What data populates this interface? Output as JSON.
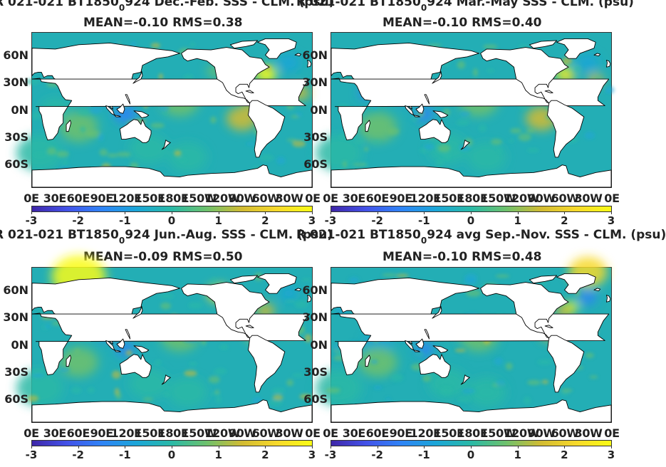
{
  "panels": [
    {
      "title_pre": "R 021-021 BT1850",
      "title_sub": "0",
      "title_post": "924  Dec.-Feb. SSS - CLM. (psu)",
      "stats": "MEAN=-0.10   RMS=0.38"
    },
    {
      "title_pre": "R 021-021 BT1850",
      "title_sub": "0",
      "title_post": "924 Mar.-May SSS - CLM. (psu)",
      "stats": "MEAN=-0.10   RMS=0.40"
    },
    {
      "title_pre": "R 021-021 BT1850",
      "title_sub": "0",
      "title_post": "924 Jun.-Aug. SSS - CLM. (psu)",
      "stats": "MEAN=-0.09   RMS=0.50"
    },
    {
      "title_pre": "R 021-021 BT1850",
      "title_sub": "0",
      "title_post": "924 avg Sep.-Nov. SSS - CLM. (psu)",
      "stats": "MEAN=-0.10   RMS=0.48"
    }
  ],
  "lat_labels": [
    "60N",
    "30N",
    "0N",
    "30S",
    "60S"
  ],
  "lon_labels": [
    "0E",
    "30E",
    "60E",
    "90E",
    "120E",
    "150E",
    "180E",
    "150W",
    "120W",
    "90W",
    "60W",
    "30W",
    "0E"
  ],
  "colorbar": {
    "ticks": [
      "-3",
      "-2",
      "-1",
      "0",
      "1",
      "2",
      "3"
    ],
    "colormap": [
      "#3e26a8",
      "#4352e8",
      "#2f84f6",
      "#1ba6d7",
      "#2ab9a6",
      "#6ec16c",
      "#d2bb32",
      "#f7d92b",
      "#f9fb15"
    ]
  },
  "colors": {
    "ocean_base": "#23aeb5",
    "land": "#ffffff",
    "coast": "#000000"
  }
}
